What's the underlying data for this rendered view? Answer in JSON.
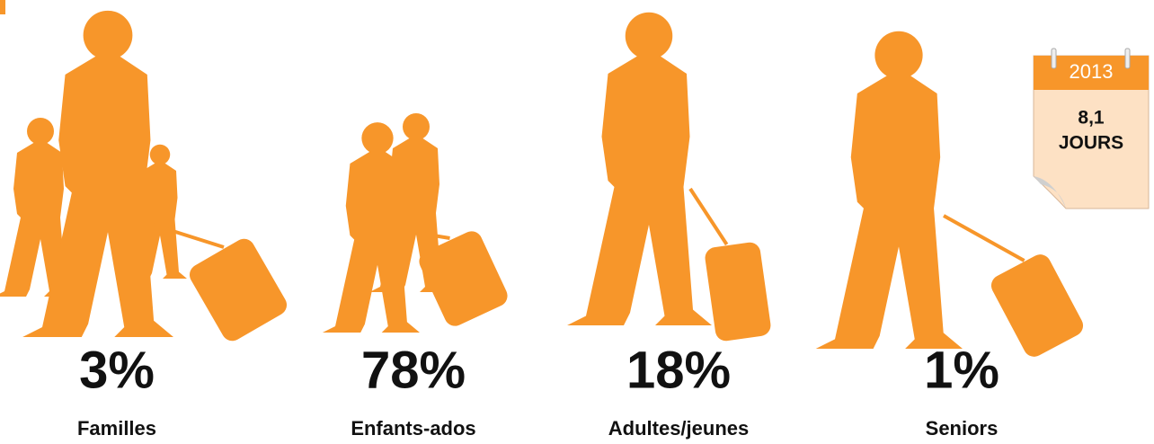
{
  "chart_data": {
    "type": "pictograph",
    "categories": [
      "Familles",
      "Enfants-ados",
      "Adultes/jeunes",
      "Seniors"
    ],
    "values": [
      3,
      78,
      18,
      1
    ],
    "value_labels": [
      "3%",
      "78%",
      "18%",
      "1%"
    ],
    "color": "#f7962a",
    "annotation": {
      "year": "2013",
      "value": "8,1",
      "unit": "JOURS"
    }
  }
}
